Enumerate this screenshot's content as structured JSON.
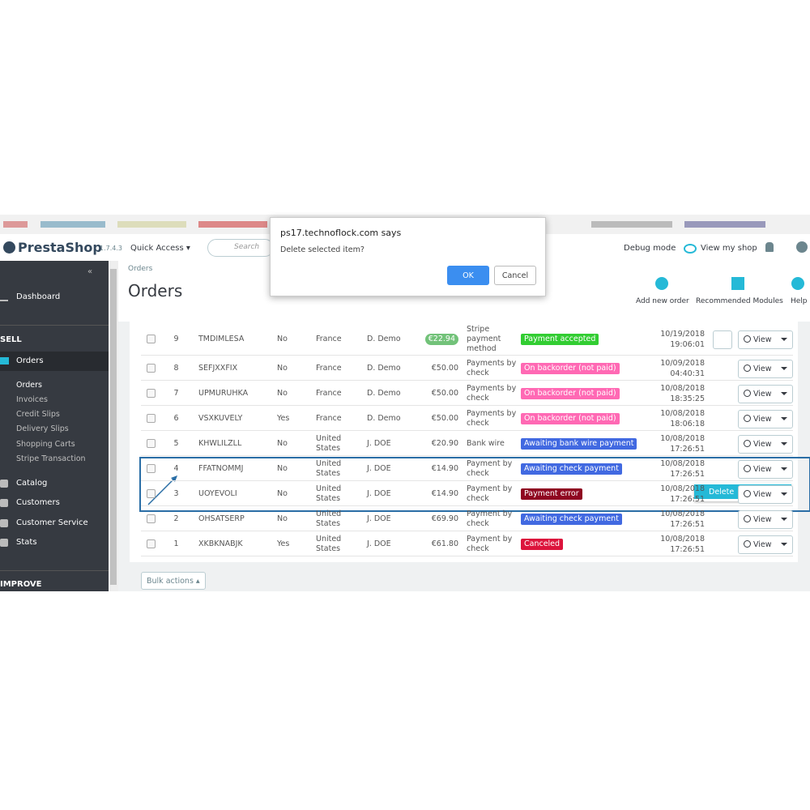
{
  "header": {
    "logo": "PrestaShop",
    "version": "1.7.4.3",
    "quick_access": "Quick Access ▾",
    "search_placeholder": "Search",
    "debug_mode": "Debug mode",
    "view_shop": "View my shop"
  },
  "dialog": {
    "origin": "ps17.technoflock.com says",
    "message": "Delete selected item?",
    "ok": "OK",
    "cancel": "Cancel"
  },
  "sidebar": {
    "dashboard": "Dashboard",
    "sell": "SELL",
    "orders": "Orders",
    "submenu": [
      "Orders",
      "Invoices",
      "Credit Slips",
      "Delivery Slips",
      "Shopping Carts",
      "Stripe Transaction"
    ],
    "items": [
      "Catalog",
      "Customers",
      "Customer Service",
      "Stats"
    ],
    "improve": "IMPROVE"
  },
  "page": {
    "breadcrumb": "Orders",
    "title": "Orders",
    "toolbar": [
      "Add new order",
      "Recommended Modules",
      "Help"
    ]
  },
  "table": {
    "rows": [
      [
        "9",
        "TMDIMLESA",
        "No",
        "France",
        "D. Demo",
        "€22.94",
        "Stripe payment method",
        "Payment accepted",
        "10/19/2018",
        "19:06:01"
      ],
      [
        "8",
        "SEFJXXFIX",
        "No",
        "France",
        "D. Demo",
        "€50.00",
        "Payments by check",
        "On backorder (not paid)",
        "10/09/2018",
        "04:40:31"
      ],
      [
        "7",
        "UPMURUHKA",
        "No",
        "France",
        "D. Demo",
        "€50.00",
        "Payments by check",
        "On backorder (not paid)",
        "10/08/2018",
        "18:35:25"
      ],
      [
        "6",
        "VSXKUVELY",
        "Yes",
        "France",
        "D. Demo",
        "€50.00",
        "Payments by check",
        "On backorder (not paid)",
        "10/08/2018",
        "18:06:18"
      ],
      [
        "5",
        "KHWLILZLL",
        "No",
        "United States",
        "J. DOE",
        "€20.90",
        "Bank wire",
        "Awaiting bank wire payment",
        "10/08/2018",
        "17:26:51"
      ],
      [
        "4",
        "FFATNOMMJ",
        "No",
        "United States",
        "J. DOE",
        "€14.90",
        "Payment by check",
        "Awaiting check payment",
        "10/08/2018",
        "17:26:51"
      ],
      [
        "3",
        "UOYEVOLI",
        "No",
        "United States",
        "J. DOE",
        "€14.90",
        "Payment by check",
        "Payment error",
        "10/08/2018",
        "17:26:51"
      ],
      [
        "2",
        "OHSATSERP",
        "No",
        "United States",
        "J. DOE",
        "€69.90",
        "Payment by check",
        "Awaiting check payment",
        "10/08/2018",
        "17:26:51"
      ],
      [
        "1",
        "XKBKNABJK",
        "Yes",
        "United States",
        "J. DOE",
        "€61.80",
        "Payment by check",
        "Canceled",
        "10/08/2018",
        "17:26:51"
      ]
    ],
    "status_colors": [
      "#32cd32",
      "#ff69b4",
      "#ff69b4",
      "#ff69b4",
      "#4169e1",
      "#4169e1",
      "#8f0621",
      "#4169e1",
      "#dc143c"
    ],
    "view": "View",
    "delete": "Delete",
    "bulk_actions": "Bulk actions ▴"
  }
}
